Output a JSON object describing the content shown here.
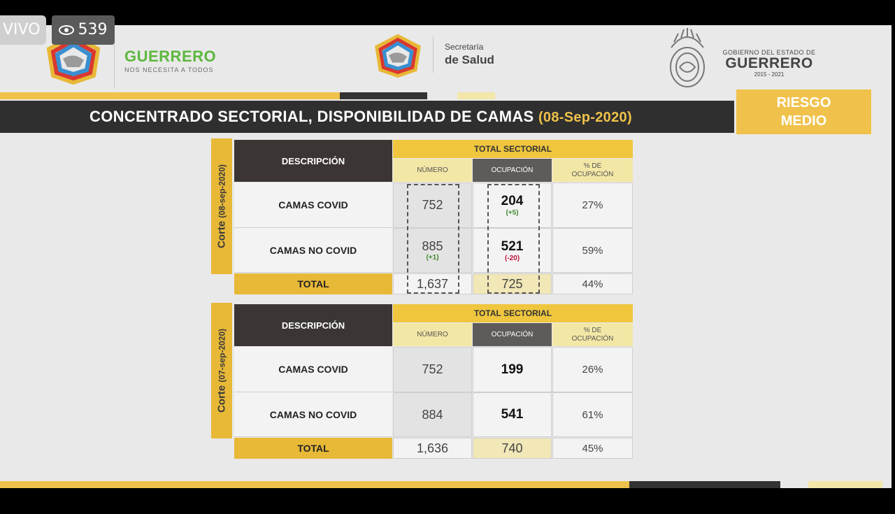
{
  "live": {
    "tag": "VIVO",
    "viewers": "539"
  },
  "header": {
    "guerrero_title": "GUERRERO",
    "guerrero_slogan": "NOS NECESITA A TODOS",
    "salud_line1": "Secretaría",
    "salud_line2": "de Salud",
    "gob_line1": "GOBIERNO DEL ESTADO DE",
    "gob_line2": "GUERRERO",
    "gob_line3": "2015 - 2021"
  },
  "title": {
    "text": "CONCENTRADO SECTORIAL, DISPONIBILIDAD DE CAMAS",
    "date": "(08-Sep-2020)"
  },
  "risk": {
    "line1": "RIESGO",
    "line2": "MEDIO"
  },
  "colors": {
    "gold": "#efc63e",
    "dark": "#2f2f2f",
    "green": "#5db73e",
    "red": "#c0143c"
  },
  "tables": [
    {
      "corte_label": "Corte",
      "corte_date": "(08-sep-2020)",
      "header": {
        "descripcion": "DESCRIPCIÓN",
        "total_sectorial": "TOTAL SECTORIAL",
        "numero": "NÚMERO",
        "ocupacion": "OCUPACIÓN",
        "pct_line1": "% DE",
        "pct_line2": "OCUPACIÓN"
      },
      "rows": [
        {
          "label": "CAMAS COVID",
          "numero": "752",
          "numero_delta": "",
          "ocupacion": "204",
          "ocupacion_delta": "(+5)",
          "pct": "27%"
        },
        {
          "label": "CAMAS NO COVID",
          "numero": "885",
          "numero_delta": "(+1)",
          "ocupacion": "521",
          "ocupacion_delta": "(-20)",
          "pct": "59%"
        }
      ],
      "total": {
        "label": "TOTAL",
        "numero": "1,637",
        "ocupacion": "725",
        "pct": "44%"
      }
    },
    {
      "corte_label": "Corte",
      "corte_date": "(07-sep-2020)",
      "header": {
        "descripcion": "DESCRIPCIÓN",
        "total_sectorial": "TOTAL SECTORIAL",
        "numero": "NÚMERO",
        "ocupacion": "OCUPACIÓN",
        "pct_line1": "% DE",
        "pct_line2": "OCUPACIÓN"
      },
      "rows": [
        {
          "label": "CAMAS COVID",
          "numero": "752",
          "numero_delta": "",
          "ocupacion": "199",
          "ocupacion_delta": "",
          "pct": "26%"
        },
        {
          "label": "CAMAS NO COVID",
          "numero": "884",
          "numero_delta": "",
          "ocupacion": "541",
          "ocupacion_delta": "",
          "pct": "61%"
        }
      ],
      "total": {
        "label": "TOTAL",
        "numero": "1,636",
        "ocupacion": "740",
        "pct": "45%"
      }
    }
  ]
}
